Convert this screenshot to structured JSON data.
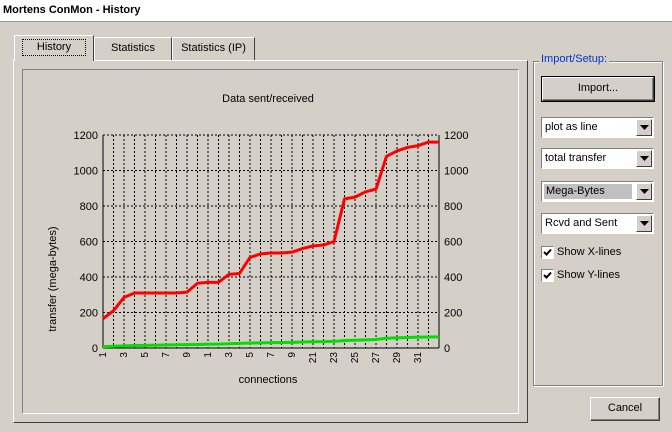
{
  "window": {
    "title": "Mortens ConMon - History"
  },
  "tabs": [
    {
      "label": "History",
      "active": true
    },
    {
      "label": "Statistics",
      "active": false
    },
    {
      "label": "Statistics (IP)",
      "active": false
    }
  ],
  "setup": {
    "legend": "Import/Setup:",
    "import_label": "Import...",
    "plot_style": {
      "value": "plot as line"
    },
    "data_kind": {
      "value": "total transfer"
    },
    "unit": {
      "value": "Mega-Bytes"
    },
    "direction": {
      "value": "Rcvd and Sent"
    },
    "show_x_lines": {
      "label": "Show X-lines",
      "checked": true
    },
    "show_y_lines": {
      "label": "Show Y-lines",
      "checked": true
    }
  },
  "cancel_label": "Cancel",
  "chart_data": {
    "type": "line",
    "title": "Data sent/received",
    "xlabel": "connections",
    "ylabel": "transfer (mega-bytes)",
    "ylim": [
      0,
      1200
    ],
    "yticks": [
      0,
      200,
      400,
      600,
      800,
      1000,
      1200
    ],
    "xticks": [
      "1",
      "3",
      "5",
      "7",
      "9",
      "1",
      "3",
      "5",
      "7",
      "9",
      "21",
      "23",
      "25",
      "27",
      "29",
      "31"
    ],
    "xlim": [
      1,
      33
    ],
    "grid": {
      "x": true,
      "y": true
    },
    "right_axis": true,
    "colors": {
      "upper": "#ff0000",
      "lower": "#00e000"
    },
    "series": [
      {
        "x": [
          1,
          2,
          3,
          4,
          5,
          6,
          7,
          8,
          9,
          10,
          11,
          12,
          13,
          14,
          15,
          16,
          17,
          18,
          19,
          20,
          21,
          22,
          23,
          24,
          25,
          26,
          27,
          28,
          29,
          30,
          31,
          32,
          33
        ],
        "values": [
          165,
          210,
          285,
          310,
          310,
          310,
          310,
          310,
          315,
          365,
          370,
          370,
          415,
          420,
          510,
          530,
          535,
          535,
          540,
          560,
          575,
          580,
          600,
          840,
          850,
          880,
          895,
          1080,
          1110,
          1130,
          1140,
          1160,
          1160
        ]
      },
      {
        "x": [
          1,
          2,
          3,
          4,
          5,
          6,
          7,
          8,
          9,
          10,
          11,
          12,
          13,
          14,
          15,
          16,
          17,
          18,
          19,
          20,
          21,
          22,
          23,
          24,
          25,
          26,
          27,
          28,
          29,
          30,
          31,
          32,
          33
        ],
        "values": [
          8,
          10,
          12,
          14,
          15,
          16,
          17,
          18,
          19,
          20,
          21,
          22,
          24,
          26,
          28,
          29,
          30,
          31,
          32,
          34,
          35,
          36,
          37,
          42,
          44,
          46,
          48,
          55,
          57,
          59,
          61,
          62,
          63
        ]
      }
    ]
  }
}
